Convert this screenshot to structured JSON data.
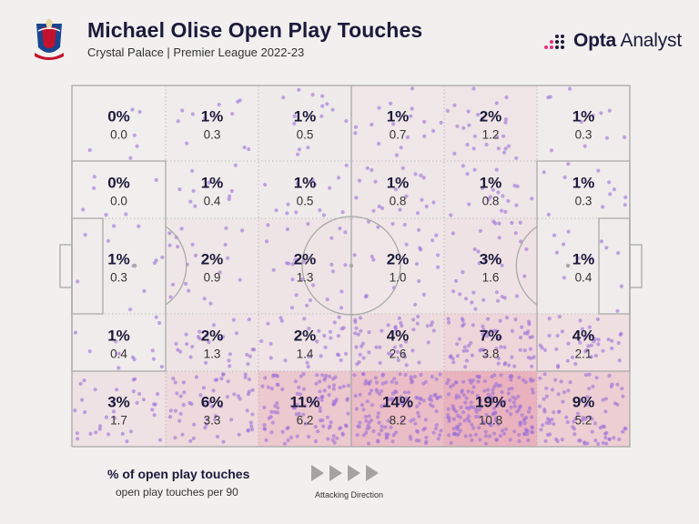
{
  "header": {
    "title": "Michael Olise Open Play Touches",
    "subtitle": "Crystal Palace | Premier League 2022-23"
  },
  "brand": {
    "name_bold": "Opta",
    "name_light": " Analyst",
    "accent": "#e6307a"
  },
  "legend": {
    "pct_label": "% of open play touches",
    "per90_label": "open play touches per 90",
    "direction_label": "Attacking Direction"
  },
  "colors": {
    "background": "#f1f0ef",
    "pitch_line": "#a9a9a9",
    "zone_tint": "#e8a7b5",
    "dot": "#9b6fd8",
    "text": "#1c1a3a"
  },
  "chart_data": {
    "type": "heatmap",
    "title": "Michael Olise Open Play Touches",
    "subtitle": "Crystal Palace | Premier League 2022-23",
    "columns": 6,
    "rows": 5,
    "cells": [
      [
        {
          "pct": "0%",
          "per90": "0.0"
        },
        {
          "pct": "1%",
          "per90": "0.3"
        },
        {
          "pct": "1%",
          "per90": "0.5"
        },
        {
          "pct": "1%",
          "per90": "0.7"
        },
        {
          "pct": "2%",
          "per90": "1.2"
        },
        {
          "pct": "1%",
          "per90": "0.3"
        }
      ],
      [
        {
          "pct": "0%",
          "per90": "0.0"
        },
        {
          "pct": "1%",
          "per90": "0.4"
        },
        {
          "pct": "1%",
          "per90": "0.5"
        },
        {
          "pct": "1%",
          "per90": "0.8"
        },
        {
          "pct": "1%",
          "per90": "0.8"
        },
        {
          "pct": "1%",
          "per90": "0.3"
        }
      ],
      [
        {
          "pct": "1%",
          "per90": "0.3"
        },
        {
          "pct": "2%",
          "per90": "0.9"
        },
        {
          "pct": "2%",
          "per90": "1.3"
        },
        {
          "pct": "2%",
          "per90": "1.0"
        },
        {
          "pct": "3%",
          "per90": "1.6"
        },
        {
          "pct": "1%",
          "per90": "0.4"
        }
      ],
      [
        {
          "pct": "1%",
          "per90": "0.4"
        },
        {
          "pct": "2%",
          "per90": "1.3"
        },
        {
          "pct": "2%",
          "per90": "1.4"
        },
        {
          "pct": "4%",
          "per90": "2.6"
        },
        {
          "pct": "7%",
          "per90": "3.8"
        },
        {
          "pct": "4%",
          "per90": "2.1"
        }
      ],
      [
        {
          "pct": "3%",
          "per90": "1.7"
        },
        {
          "pct": "6%",
          "per90": "3.3"
        },
        {
          "pct": "11%",
          "per90": "6.2"
        },
        {
          "pct": "14%",
          "per90": "8.2"
        },
        {
          "pct": "19%",
          "per90": "10.8"
        },
        {
          "pct": "9%",
          "per90": "5.2"
        }
      ]
    ],
    "attacking_direction": "right"
  }
}
